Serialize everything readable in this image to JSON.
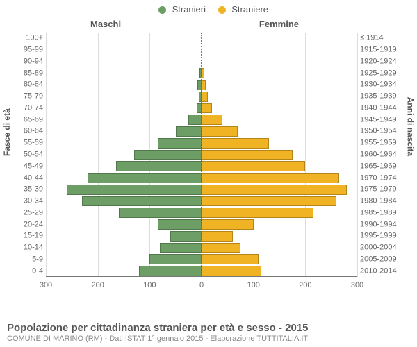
{
  "legend": {
    "male": {
      "label": "Stranieri",
      "color": "#6d9e66"
    },
    "female": {
      "label": "Straniere",
      "color": "#f0b323"
    }
  },
  "columns": {
    "left": "Maschi",
    "right": "Femmine"
  },
  "y_axis_label": "Fasce di età",
  "y2_axis_label": "Anni di nascita",
  "x_max": 300,
  "x_ticks_left": [
    300,
    200,
    100,
    0
  ],
  "x_ticks_right": [
    0,
    100,
    200,
    300
  ],
  "grid_color": "#dddddd",
  "bar_border_darken": 0.75,
  "rows": [
    {
      "age": "0-4",
      "birth": "2010-2014",
      "m": 120,
      "f": 115
    },
    {
      "age": "5-9",
      "birth": "2005-2009",
      "m": 100,
      "f": 110
    },
    {
      "age": "10-14",
      "birth": "2000-2004",
      "m": 80,
      "f": 75
    },
    {
      "age": "15-19",
      "birth": "1995-1999",
      "m": 60,
      "f": 60
    },
    {
      "age": "20-24",
      "birth": "1990-1994",
      "m": 85,
      "f": 100
    },
    {
      "age": "25-29",
      "birth": "1985-1989",
      "m": 160,
      "f": 215
    },
    {
      "age": "30-34",
      "birth": "1980-1984",
      "m": 230,
      "f": 260
    },
    {
      "age": "35-39",
      "birth": "1975-1979",
      "m": 260,
      "f": 280
    },
    {
      "age": "40-44",
      "birth": "1970-1974",
      "m": 220,
      "f": 265
    },
    {
      "age": "45-49",
      "birth": "1965-1969",
      "m": 165,
      "f": 200
    },
    {
      "age": "50-54",
      "birth": "1960-1964",
      "m": 130,
      "f": 175
    },
    {
      "age": "55-59",
      "birth": "1955-1959",
      "m": 85,
      "f": 130
    },
    {
      "age": "60-64",
      "birth": "1950-1954",
      "m": 50,
      "f": 70
    },
    {
      "age": "65-69",
      "birth": "1945-1949",
      "m": 25,
      "f": 40
    },
    {
      "age": "70-74",
      "birth": "1940-1944",
      "m": 10,
      "f": 20
    },
    {
      "age": "75-79",
      "birth": "1935-1939",
      "m": 5,
      "f": 12
    },
    {
      "age": "80-84",
      "birth": "1930-1934",
      "m": 8,
      "f": 8
    },
    {
      "age": "85-89",
      "birth": "1925-1929",
      "m": 4,
      "f": 6
    },
    {
      "age": "90-94",
      "birth": "1920-1924",
      "m": 0,
      "f": 0
    },
    {
      "age": "95-99",
      "birth": "1915-1919",
      "m": 0,
      "f": 0
    },
    {
      "age": "100+",
      "birth": "≤ 1914",
      "m": 0,
      "f": 0
    }
  ],
  "footer": {
    "title": "Popolazione per cittadinanza straniera per età e sesso - 2015",
    "subtitle": "COMUNE DI MARINO (RM) - Dati ISTAT 1° gennaio 2015 - Elaborazione TUTTITALIA.IT"
  }
}
